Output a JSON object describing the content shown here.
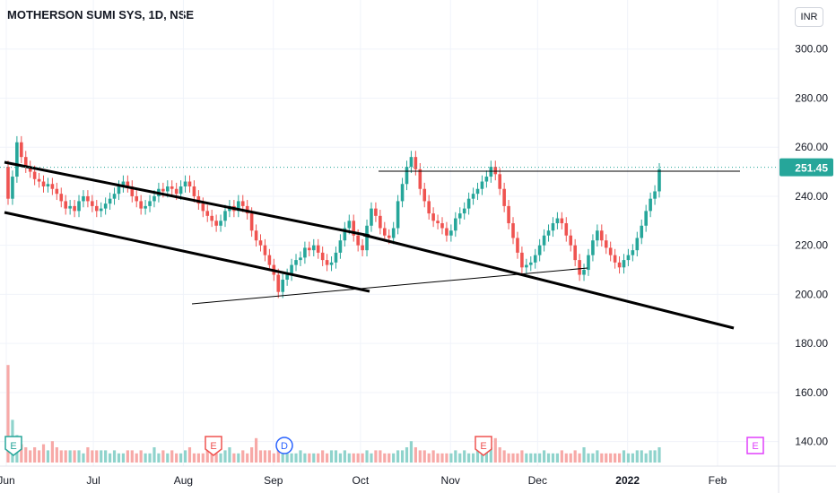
{
  "title": "MOTHERSON SUMI SYS, 1D, NSE",
  "currency": "INR",
  "colors": {
    "up": "#26a69a",
    "down": "#ef5350",
    "vol_up": "#8fd3cc",
    "vol_down": "#f7a9a7",
    "price_label_bg": "#26a69a",
    "grid": "#f0f3fa",
    "trendline": "#000000",
    "event_earnings": "#ef5350",
    "event_dividend": "#2962ff",
    "event_split": "#e040fb",
    "event_green": "#26a69a"
  },
  "chart_data": {
    "type": "candlestick",
    "symbol": "MOTHERSON SUMI SYS",
    "interval": "1D",
    "exchange": "NSE",
    "last_price": "251.45",
    "y_ticks": [
      "140.00",
      "160.00",
      "180.00",
      "200.00",
      "220.00",
      "240.00",
      "260.00",
      "280.00",
      "300.00"
    ],
    "ylim": [
      130,
      320
    ],
    "x_labels": [
      {
        "label": "Jun",
        "day": 0
      },
      {
        "label": "Jul",
        "day": 30
      },
      {
        "label": "Aug",
        "day": 61
      },
      {
        "label": "Sep",
        "day": 92
      },
      {
        "label": "Oct",
        "day": 122
      },
      {
        "label": "Nov",
        "day": 153
      },
      {
        "label": "Dec",
        "day": 183
      },
      {
        "label": "2022",
        "day": 214
      },
      {
        "label": "Feb",
        "day": 245
      }
    ],
    "candles_close": [
      239,
      248,
      262,
      256,
      252,
      250,
      247,
      246,
      244,
      245,
      243,
      241,
      238,
      235,
      236,
      234,
      238,
      240,
      238,
      236,
      234,
      235,
      237,
      239,
      241,
      244,
      246,
      244,
      240,
      238,
      235,
      236,
      238,
      240,
      243,
      242,
      244,
      243,
      241,
      244,
      246,
      244,
      240,
      237,
      234,
      232,
      230,
      228,
      230,
      234,
      236,
      234,
      238,
      236,
      233,
      226,
      222,
      220,
      216,
      212,
      208,
      201,
      206,
      208,
      212,
      214,
      215,
      219,
      218,
      220,
      217,
      214,
      212,
      213,
      217,
      222,
      227,
      230,
      224,
      220,
      218,
      228,
      235,
      232,
      227,
      224,
      223,
      227,
      238,
      245,
      252,
      256,
      251,
      243,
      238,
      233,
      230,
      229,
      227,
      224,
      226,
      231,
      233,
      235,
      239,
      241,
      243,
      246,
      248,
      252,
      249,
      243,
      236,
      229,
      223,
      217,
      211,
      212,
      213,
      216,
      220,
      224,
      226,
      229,
      231,
      229,
      224,
      220,
      214,
      208,
      210,
      216,
      222,
      226,
      222,
      219,
      216,
      213,
      211,
      214,
      216,
      218,
      223,
      228,
      234,
      239,
      242,
      251
    ],
    "candles_open": [
      252,
      239,
      248,
      262,
      256,
      252,
      250,
      247,
      246,
      244,
      245,
      243,
      241,
      238,
      235,
      236,
      234,
      238,
      240,
      238,
      236,
      234,
      235,
      237,
      239,
      241,
      244,
      246,
      244,
      240,
      238,
      235,
      236,
      238,
      240,
      243,
      242,
      244,
      243,
      241,
      244,
      246,
      244,
      240,
      237,
      234,
      232,
      230,
      228,
      230,
      234,
      236,
      234,
      238,
      236,
      233,
      226,
      222,
      220,
      216,
      212,
      208,
      201,
      206,
      208,
      212,
      214,
      215,
      219,
      218,
      220,
      217,
      214,
      212,
      213,
      217,
      222,
      227,
      230,
      224,
      220,
      218,
      228,
      235,
      232,
      227,
      224,
      223,
      227,
      238,
      245,
      252,
      256,
      251,
      243,
      238,
      233,
      230,
      229,
      227,
      224,
      226,
      231,
      233,
      235,
      239,
      241,
      243,
      246,
      248,
      252,
      249,
      243,
      236,
      229,
      223,
      217,
      211,
      212,
      213,
      216,
      220,
      224,
      226,
      229,
      231,
      229,
      224,
      220,
      214,
      208,
      210,
      216,
      222,
      226,
      222,
      219,
      216,
      213,
      211,
      214,
      216,
      218,
      223,
      228,
      234,
      239,
      242
    ],
    "volume": [
      32,
      14,
      9,
      6,
      5,
      4,
      5,
      4,
      6,
      4,
      7,
      5,
      4,
      4,
      4,
      4,
      4,
      3,
      5,
      4,
      4,
      4,
      4,
      3,
      4,
      3,
      3,
      4,
      4,
      3,
      4,
      3,
      3,
      5,
      3,
      4,
      3,
      4,
      3,
      3,
      4,
      5,
      3,
      3,
      3,
      4,
      4,
      3,
      3,
      4,
      5,
      3,
      3,
      4,
      3,
      5,
      8,
      4,
      4,
      4,
      3,
      4,
      4,
      3,
      3,
      3,
      4,
      3,
      3,
      3,
      3,
      4,
      3,
      4,
      4,
      3,
      4,
      3,
      3,
      3,
      3,
      4,
      3,
      4,
      4,
      3,
      3,
      3,
      4,
      4,
      5,
      7,
      5,
      4,
      4,
      3,
      4,
      3,
      3,
      3,
      3,
      4,
      3,
      4,
      3,
      3,
      4,
      3,
      4,
      5,
      8,
      5,
      4,
      3,
      3,
      3,
      4,
      3,
      3,
      3,
      3,
      4,
      3,
      3,
      3,
      4,
      3,
      3,
      4,
      3,
      5,
      3,
      3,
      4,
      3,
      3,
      3,
      3,
      3,
      4,
      3,
      3,
      4,
      4,
      3,
      4,
      4,
      5
    ],
    "trendlines": [
      {
        "name": "upper-channel",
        "from": [
          0,
          258
        ],
        "to": [
          200,
          183
        ]
      },
      {
        "name": "lower-channel",
        "from": [
          0,
          238
        ],
        "to": [
          200,
          162
        ]
      },
      {
        "name": "lower-support",
        "from": [
          0,
          238
        ],
        "to": [
          81,
          203
        ]
      },
      {
        "name": "rising-trend",
        "from": [
          42,
          198
        ],
        "to": [
          132,
          212
        ]
      },
      {
        "name": "resistance",
        "from": [
          83,
          254
        ],
        "to": [
          167,
          254
        ]
      }
    ],
    "events": [
      {
        "type": "green",
        "label": "E",
        "day": 4
      },
      {
        "type": "earnings",
        "label": "E",
        "day": 78
      },
      {
        "type": "dividend",
        "label": "D",
        "day": 105
      },
      {
        "type": "earnings",
        "label": "E",
        "day": 178
      },
      {
        "type": "split",
        "label": "E",
        "day": 280
      }
    ]
  }
}
